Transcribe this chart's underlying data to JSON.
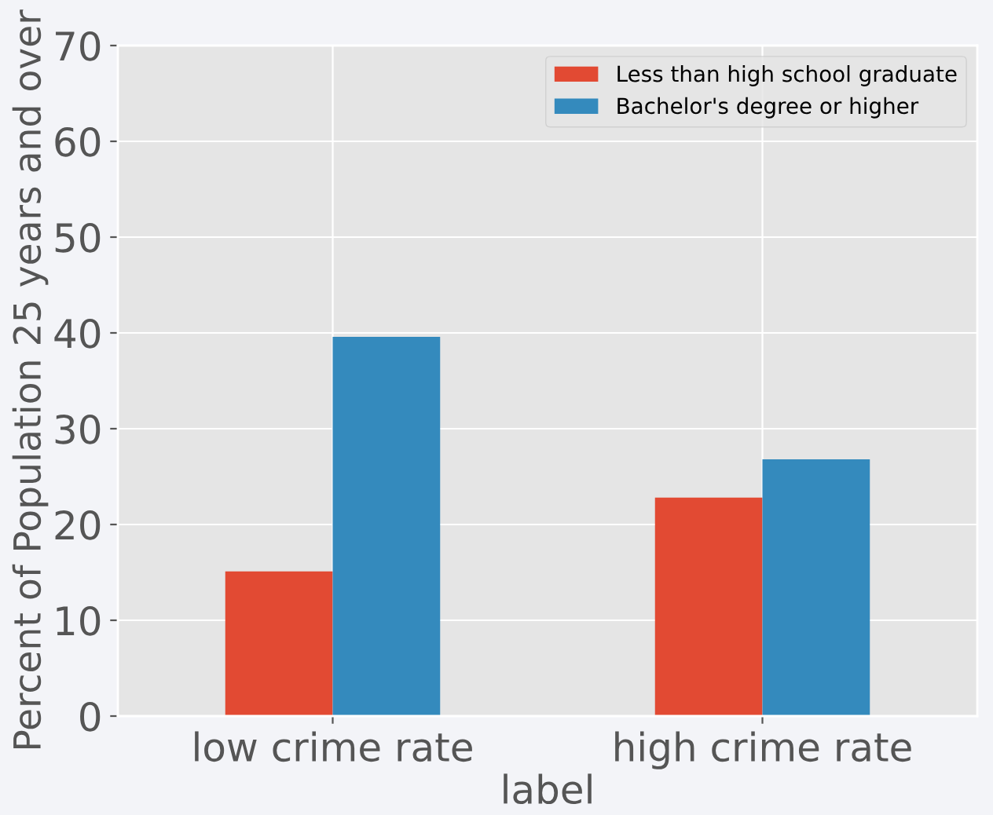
{
  "chart_data": {
    "type": "bar",
    "xlabel": "label",
    "ylabel": "Percent of Population 25 years and over",
    "categories": [
      "low crime rate",
      "high crime rate"
    ],
    "series": [
      {
        "name": "Less than high school graduate",
        "color": "#e24a33",
        "values": [
          15.1,
          22.8
        ]
      },
      {
        "name": "Bachelor's degree or higher",
        "color": "#348abd",
        "values": [
          39.6,
          26.8
        ]
      }
    ],
    "ylim": [
      0,
      70
    ],
    "yticks": [
      0,
      10,
      20,
      30,
      40,
      50,
      60,
      70
    ],
    "grid": true,
    "legend": "top right"
  }
}
